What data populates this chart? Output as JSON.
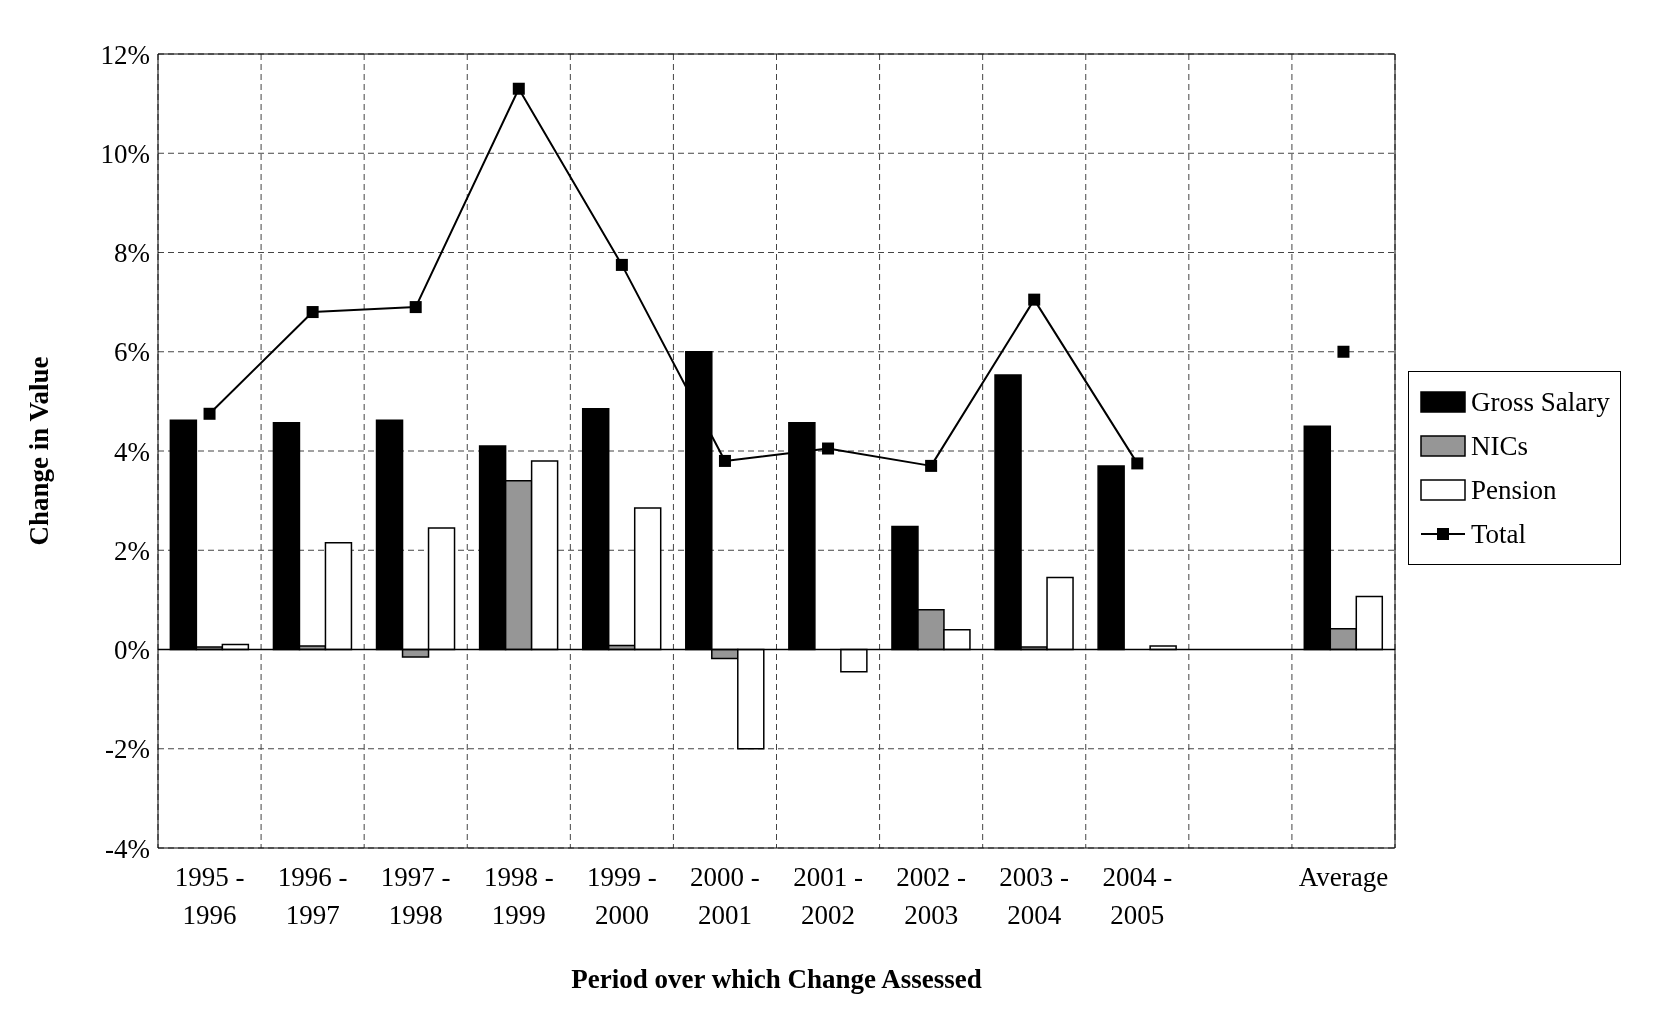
{
  "chart_data": {
    "type": "bar",
    "xlabel": "Period over which Change Assessed",
    "ylabel": "Change in Value",
    "categories": [
      "1995 - 1996",
      "1996 - 1997",
      "1997 - 1998",
      "1998 - 1999",
      "1999 - 2000",
      "2000 - 2001",
      "2001 - 2002",
      "2002 - 2003",
      "2003 - 2004",
      "2004 - 2005",
      null,
      "Average"
    ],
    "series": [
      {
        "name": "Gross Salary",
        "color": "#000000",
        "values": [
          4.62,
          4.57,
          4.62,
          4.1,
          4.85,
          6.0,
          4.57,
          2.48,
          5.53,
          3.7,
          null,
          4.5
        ]
      },
      {
        "name": "NICs",
        "color": "#969696",
        "values": [
          0.05,
          0.07,
          -0.15,
          3.4,
          0.08,
          -0.18,
          null,
          0.8,
          0.05,
          null,
          null,
          0.42
        ]
      },
      {
        "name": "Pension",
        "color": "#ffffff",
        "values": [
          0.1,
          2.15,
          2.45,
          3.8,
          2.85,
          -2.0,
          -0.45,
          0.4,
          1.45,
          0.07,
          null,
          1.07
        ]
      },
      {
        "name": "Total",
        "type": "line",
        "color": "#000000",
        "marker": "square",
        "line_style": "solid",
        "values": [
          4.75,
          6.8,
          6.9,
          11.3,
          7.75,
          3.8,
          4.05,
          3.7,
          7.05,
          3.75,
          null,
          6.0
        ]
      }
    ],
    "ylim": [
      -4,
      12
    ],
    "yticks": [
      {
        "value": -4,
        "label": "-4%"
      },
      {
        "value": -2,
        "label": "-2%"
      },
      {
        "value": 0,
        "label": "0%"
      },
      {
        "value": 2,
        "label": "2%"
      },
      {
        "value": 4,
        "label": "4%"
      },
      {
        "value": 6,
        "label": "6%"
      },
      {
        "value": 8,
        "label": "8%"
      },
      {
        "value": 10,
        "label": "10%"
      },
      {
        "value": 12,
        "label": "12%"
      }
    ],
    "ref_lines": [
      {
        "axis": "y",
        "value": 0,
        "color": "#000000",
        "line_style": "solid"
      }
    ],
    "grid": true,
    "legend": "right"
  }
}
